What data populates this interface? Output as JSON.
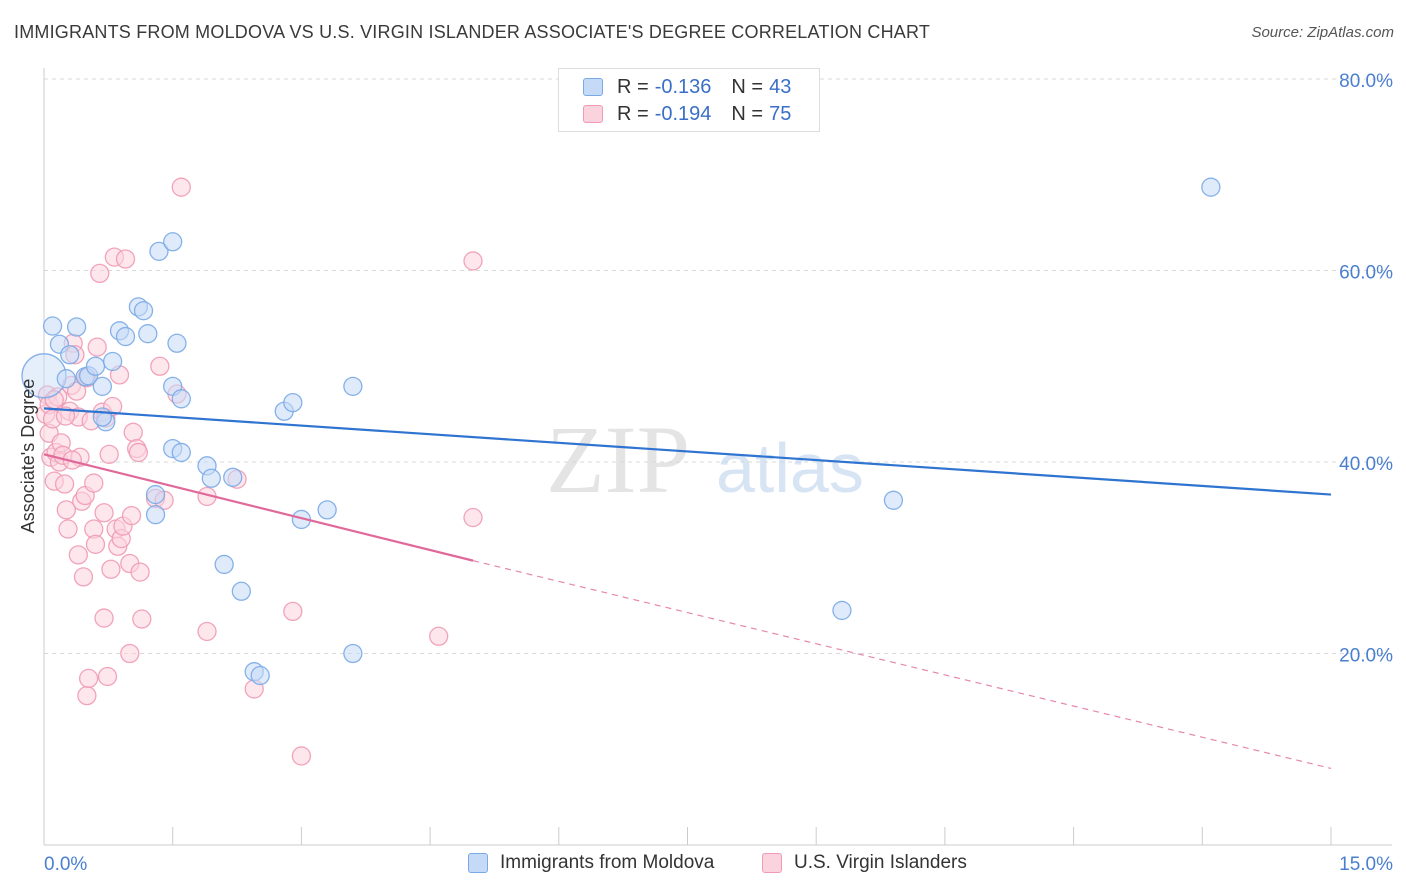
{
  "header": {
    "title": "IMMIGRANTS FROM MOLDOVA VS U.S. VIRGIN ISLANDER ASSOCIATE'S DEGREE CORRELATION CHART",
    "source": "Source: ZipAtlas.com"
  },
  "watermark": {
    "part1": "ZIP",
    "part2": "atlas"
  },
  "legend": {
    "rows": [
      {
        "r_label": "R =",
        "r_value": "-0.136",
        "n_label": "N =",
        "n_value": "43"
      },
      {
        "r_label": "R =",
        "r_value": "-0.194",
        "n_label": "N =",
        "n_value": "75"
      }
    ]
  },
  "colors": {
    "blue_fill": "#c5daf7",
    "blue_stroke": "#7aaae6",
    "blue_line": "#2f74d0",
    "pink_fill": "#fbd3df",
    "pink_stroke": "#f09ab5",
    "pink_line": "#e0699a"
  },
  "chart_data": {
    "type": "scatter",
    "title": "IMMIGRANTS FROM MOLDOVA VS U.S. VIRGIN ISLANDER ASSOCIATE'S DEGREE CORRELATION CHART",
    "xlabel": "",
    "ylabel": "Associate's Degree",
    "xlim": [
      0,
      15
    ],
    "ylim": [
      0,
      82
    ],
    "x_tick_labels": [
      "0.0%",
      "15.0%"
    ],
    "y_ticks": [
      20,
      40,
      60,
      80
    ],
    "y_tick_labels": [
      "20.0%",
      "40.0%",
      "60.0%",
      "80.0%"
    ],
    "grid": true,
    "legend_position": "bottom",
    "series": [
      {
        "name": "Immigrants from Moldova",
        "r": -0.136,
        "n": 43,
        "trend": {
          "x": [
            0,
            15
          ],
          "y": [
            45.6,
            36.6
          ]
        },
        "points": [
          {
            "x": 0.0,
            "y": 49.0,
            "big": true
          },
          {
            "x": 0.1,
            "y": 54.2
          },
          {
            "x": 0.18,
            "y": 52.3
          },
          {
            "x": 0.26,
            "y": 48.7
          },
          {
            "x": 0.3,
            "y": 51.2
          },
          {
            "x": 0.38,
            "y": 54.1
          },
          {
            "x": 0.48,
            "y": 48.9
          },
          {
            "x": 0.52,
            "y": 49.0
          },
          {
            "x": 0.6,
            "y": 50.0
          },
          {
            "x": 0.68,
            "y": 47.9
          },
          {
            "x": 0.72,
            "y": 44.2
          },
          {
            "x": 0.8,
            "y": 50.5
          },
          {
            "x": 0.68,
            "y": 44.7
          },
          {
            "x": 0.88,
            "y": 53.7
          },
          {
            "x": 0.95,
            "y": 53.1
          },
          {
            "x": 1.1,
            "y": 56.2
          },
          {
            "x": 1.16,
            "y": 55.8
          },
          {
            "x": 1.21,
            "y": 53.4
          },
          {
            "x": 1.34,
            "y": 62.0
          },
          {
            "x": 1.5,
            "y": 63.0
          },
          {
            "x": 1.55,
            "y": 52.4
          },
          {
            "x": 1.5,
            "y": 47.9
          },
          {
            "x": 1.6,
            "y": 46.6
          },
          {
            "x": 1.5,
            "y": 41.4
          },
          {
            "x": 1.6,
            "y": 41.0
          },
          {
            "x": 1.3,
            "y": 36.6
          },
          {
            "x": 1.3,
            "y": 34.5
          },
          {
            "x": 1.9,
            "y": 39.6
          },
          {
            "x": 1.95,
            "y": 38.3
          },
          {
            "x": 2.2,
            "y": 38.4
          },
          {
            "x": 2.1,
            "y": 29.3
          },
          {
            "x": 2.3,
            "y": 26.5
          },
          {
            "x": 2.45,
            "y": 18.1
          },
          {
            "x": 2.52,
            "y": 17.7
          },
          {
            "x": 2.8,
            "y": 45.3
          },
          {
            "x": 2.9,
            "y": 46.2
          },
          {
            "x": 3.0,
            "y": 34.0
          },
          {
            "x": 3.3,
            "y": 35.0
          },
          {
            "x": 3.6,
            "y": 47.9
          },
          {
            "x": 3.6,
            "y": 20.0
          },
          {
            "x": 9.3,
            "y": 24.5
          },
          {
            "x": 9.9,
            "y": 36.0
          },
          {
            "x": 13.6,
            "y": 68.7
          }
        ]
      },
      {
        "name": "U.S. Virgin Islanders",
        "r": -0.194,
        "n": 75,
        "trend": {
          "x": [
            0,
            5
          ],
          "y": [
            40.8,
            29.7
          ]
        },
        "trend_extension": {
          "x": [
            5,
            15
          ],
          "y": [
            29.7,
            8.0
          ]
        },
        "points": [
          {
            "x": 0.02,
            "y": 45.0
          },
          {
            "x": 0.04,
            "y": 47.0
          },
          {
            "x": 0.06,
            "y": 46.0
          },
          {
            "x": 0.06,
            "y": 43.0
          },
          {
            "x": 0.08,
            "y": 40.5
          },
          {
            "x": 0.1,
            "y": 44.5
          },
          {
            "x": 0.12,
            "y": 38.0
          },
          {
            "x": 0.14,
            "y": 41.0
          },
          {
            "x": 0.16,
            "y": 46.8
          },
          {
            "x": 0.18,
            "y": 40.0
          },
          {
            "x": 0.2,
            "y": 42.0
          },
          {
            "x": 0.22,
            "y": 40.7
          },
          {
            "x": 0.24,
            "y": 37.7
          },
          {
            "x": 0.26,
            "y": 35.0
          },
          {
            "x": 0.28,
            "y": 33.0
          },
          {
            "x": 0.3,
            "y": 45.3
          },
          {
            "x": 0.32,
            "y": 48.0
          },
          {
            "x": 0.34,
            "y": 52.4
          },
          {
            "x": 0.36,
            "y": 51.2
          },
          {
            "x": 0.38,
            "y": 47.4
          },
          {
            "x": 0.4,
            "y": 44.7
          },
          {
            "x": 0.4,
            "y": 30.3
          },
          {
            "x": 0.42,
            "y": 40.5
          },
          {
            "x": 0.44,
            "y": 35.9
          },
          {
            "x": 0.46,
            "y": 28.0
          },
          {
            "x": 0.48,
            "y": 36.5
          },
          {
            "x": 0.5,
            "y": 48.8
          },
          {
            "x": 0.5,
            "y": 15.6
          },
          {
            "x": 0.52,
            "y": 17.4
          },
          {
            "x": 0.55,
            "y": 44.3
          },
          {
            "x": 0.58,
            "y": 33.0
          },
          {
            "x": 0.6,
            "y": 31.4
          },
          {
            "x": 0.62,
            "y": 52.0
          },
          {
            "x": 0.65,
            "y": 59.7
          },
          {
            "x": 0.68,
            "y": 45.2
          },
          {
            "x": 0.7,
            "y": 34.7
          },
          {
            "x": 0.7,
            "y": 23.7
          },
          {
            "x": 0.72,
            "y": 44.6
          },
          {
            "x": 0.74,
            "y": 17.6
          },
          {
            "x": 0.76,
            "y": 40.8
          },
          {
            "x": 0.78,
            "y": 28.8
          },
          {
            "x": 0.8,
            "y": 45.8
          },
          {
            "x": 0.82,
            "y": 61.4
          },
          {
            "x": 0.84,
            "y": 33.0
          },
          {
            "x": 0.86,
            "y": 31.2
          },
          {
            "x": 0.88,
            "y": 49.1
          },
          {
            "x": 0.9,
            "y": 32.0
          },
          {
            "x": 0.92,
            "y": 33.3
          },
          {
            "x": 0.95,
            "y": 61.2
          },
          {
            "x": 1.0,
            "y": 29.4
          },
          {
            "x": 1.0,
            "y": 20.0
          },
          {
            "x": 1.02,
            "y": 34.4
          },
          {
            "x": 1.04,
            "y": 43.1
          },
          {
            "x": 1.08,
            "y": 41.4
          },
          {
            "x": 1.1,
            "y": 41.0
          },
          {
            "x": 1.12,
            "y": 28.5
          },
          {
            "x": 1.14,
            "y": 23.6
          },
          {
            "x": 1.3,
            "y": 36.2
          },
          {
            "x": 1.35,
            "y": 50.0
          },
          {
            "x": 1.4,
            "y": 36.0
          },
          {
            "x": 1.55,
            "y": 47.1
          },
          {
            "x": 1.6,
            "y": 68.7
          },
          {
            "x": 1.9,
            "y": 22.3
          },
          {
            "x": 1.9,
            "y": 36.4
          },
          {
            "x": 2.25,
            "y": 38.2
          },
          {
            "x": 2.45,
            "y": 16.3
          },
          {
            "x": 2.9,
            "y": 24.4
          },
          {
            "x": 3.0,
            "y": 9.3
          },
          {
            "x": 4.6,
            "y": 21.8
          },
          {
            "x": 5.0,
            "y": 34.2
          },
          {
            "x": 5.0,
            "y": 61.0
          },
          {
            "x": 0.12,
            "y": 46.5
          },
          {
            "x": 0.25,
            "y": 44.8
          },
          {
            "x": 0.33,
            "y": 40.2
          },
          {
            "x": 0.58,
            "y": 37.8
          }
        ]
      }
    ]
  }
}
